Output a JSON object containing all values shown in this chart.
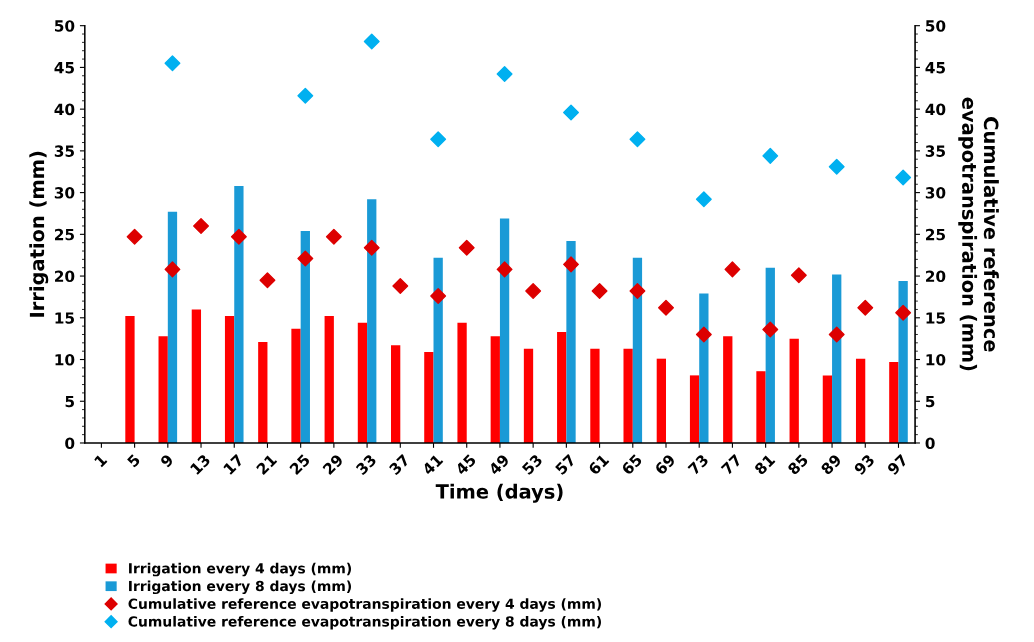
{
  "chart_data": {
    "type": "bar",
    "xlabel": "Time (days)",
    "ylabel": "Irrigation (mm)",
    "y2label": "Cumulative reference\nevapotranspiration (mm)",
    "categories": [
      "1",
      "5",
      "9",
      "13",
      "17",
      "21",
      "25",
      "29",
      "33",
      "37",
      "41",
      "45",
      "49",
      "53",
      "57",
      "61",
      "65",
      "69",
      "73",
      "77",
      "81",
      "85",
      "89",
      "93",
      "97"
    ],
    "series": [
      {
        "name": "Irrigation every 4 days (mm)",
        "type": "bar",
        "color": "#ff0000",
        "values": [
          null,
          15.2,
          12.8,
          16.0,
          15.2,
          12.1,
          13.7,
          15.2,
          14.4,
          11.7,
          10.9,
          14.4,
          12.8,
          11.3,
          13.3,
          11.3,
          11.3,
          10.1,
          8.1,
          12.8,
          8.6,
          12.5,
          8.1,
          10.1,
          9.7
        ]
      },
      {
        "name": "Irrigation every 8 days (mm)",
        "type": "bar",
        "color": "#1a9ad6",
        "values": [
          null,
          null,
          27.7,
          null,
          30.8,
          null,
          25.4,
          null,
          29.2,
          null,
          22.2,
          null,
          26.9,
          null,
          24.2,
          null,
          22.2,
          null,
          17.9,
          null,
          21.0,
          null,
          20.2,
          null,
          19.4
        ]
      },
      {
        "name": "Cumulative reference evapotranspiration every 4 days (mm)",
        "type": "scatter",
        "axis": "y2",
        "color": "#dd0000",
        "values": [
          null,
          24.7,
          20.8,
          26.0,
          24.7,
          19.5,
          22.1,
          24.7,
          23.4,
          18.8,
          17.6,
          23.4,
          20.8,
          18.2,
          21.4,
          18.2,
          18.2,
          16.2,
          13.0,
          20.8,
          13.6,
          20.1,
          13.0,
          16.2,
          15.6
        ]
      },
      {
        "name": "Cumulative reference evapotranspiration every 8 days (mm)",
        "type": "scatter",
        "axis": "y2",
        "color": "#00b0f0",
        "values": [
          null,
          null,
          45.5,
          null,
          null,
          null,
          41.6,
          null,
          48.1,
          null,
          36.4,
          null,
          44.2,
          null,
          39.6,
          null,
          36.4,
          null,
          29.2,
          null,
          34.4,
          null,
          33.1,
          null,
          31.8
        ]
      }
    ],
    "ylim": [
      0,
      50
    ],
    "yticks": [
      0,
      5,
      10,
      15,
      20,
      25,
      30,
      35,
      40,
      45,
      50
    ],
    "y2lim": [
      0,
      50
    ],
    "y2ticks": [
      0,
      5,
      10,
      15,
      20,
      25,
      30,
      35,
      40,
      45,
      50
    ],
    "marker": "diamond",
    "grid": false,
    "legend": "bottom left"
  }
}
